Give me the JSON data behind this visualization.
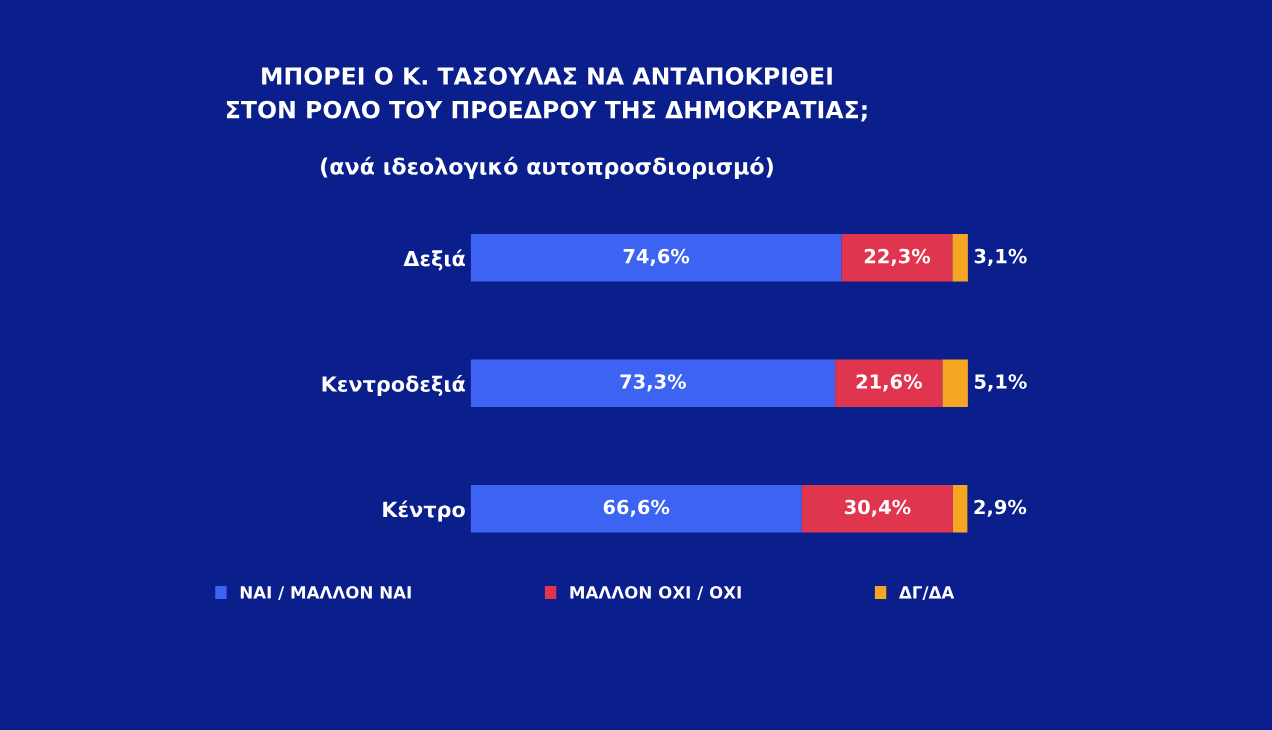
{
  "chart_data": {
    "type": "bar",
    "orientation": "horizontal",
    "stacked": true,
    "title": "ΜΠΟΡΕΙ Ο Κ. ΤΑΣΟΥΛΑΣ ΝΑ ΑΝΤΑΠΟΚΡΙΘΕΙ\nΣΤΟΝ ΡΟΛΟ ΤΟΥ ΠΡΟΕΔΡΟΥ ΤΗΣ ΔΗΜΟΚΡΑΤΙΑΣ;",
    "subtitle": "(ανά ιδεολογικό αυτοπροσδιορισμό)",
    "categories": [
      "Δεξιά",
      "Κεντροδεξιά",
      "Κέντρο"
    ],
    "series": [
      {
        "name": "ΝΑΙ / ΜΑΛΛΟΝ ΝΑΙ",
        "color": "#3d63f2",
        "values": [
          74.6,
          73.3,
          66.6
        ],
        "value_labels": [
          "74,6%",
          "73,3%",
          "66,6%"
        ]
      },
      {
        "name": "ΜΑΛΛΟΝ ΟΧΙ / ΟΧΙ",
        "color": "#e0354f",
        "values": [
          22.3,
          21.6,
          30.4
        ],
        "value_labels": [
          "22,3%",
          "21,6%",
          "30,4%"
        ]
      },
      {
        "name": "ΔΓ/ΔΑ",
        "color": "#f5a623",
        "values": [
          3.1,
          5.1,
          2.9
        ],
        "value_labels": [
          "3,1%",
          "5,1%",
          "2,9%"
        ]
      }
    ],
    "legend": "bottom",
    "grid": false
  }
}
